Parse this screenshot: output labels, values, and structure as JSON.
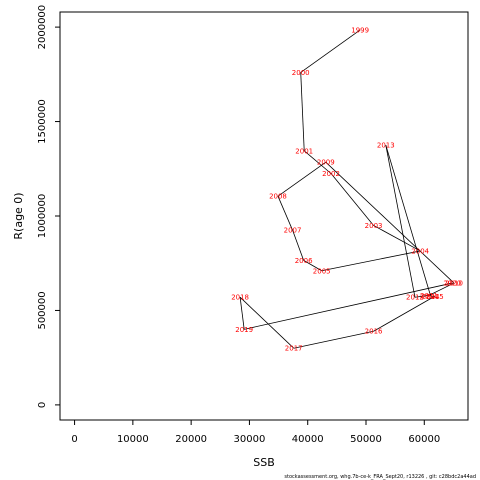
{
  "chart_data": {
    "type": "line",
    "title": "",
    "xlabel": "SSB",
    "ylabel": "R(age 0)",
    "xlim": [
      -2500,
      67500
    ],
    "ylim": [
      -80000,
      2080000
    ],
    "xticks": [
      0,
      10000,
      20000,
      30000,
      40000,
      50000,
      60000
    ],
    "yticks": [
      0,
      500000,
      1000000,
      1500000,
      2000000
    ],
    "grid": false,
    "line_color": "#000000",
    "label_color": "#ff0000",
    "points": [
      {
        "label": "1999",
        "x": 49000,
        "y": 1985000
      },
      {
        "label": "2000",
        "x": 38800,
        "y": 1760000
      },
      {
        "label": "2001",
        "x": 39400,
        "y": 1345000
      },
      {
        "label": "2002",
        "x": 44000,
        "y": 1225000
      },
      {
        "label": "2003",
        "x": 51300,
        "y": 950000
      },
      {
        "label": "2004",
        "x": 59300,
        "y": 815000
      },
      {
        "label": "2005",
        "x": 42400,
        "y": 710000
      },
      {
        "label": "2006",
        "x": 39300,
        "y": 765000
      },
      {
        "label": "2007",
        "x": 37400,
        "y": 925000
      },
      {
        "label": "2008",
        "x": 34900,
        "y": 1105000
      },
      {
        "label": "2009",
        "x": 43100,
        "y": 1285000
      },
      {
        "label": "2010",
        "x": 65100,
        "y": 645000
      },
      {
        "label": "2011",
        "x": 60800,
        "y": 580000
      },
      {
        "label": "2012",
        "x": 58400,
        "y": 570000
      },
      {
        "label": "2013",
        "x": 53400,
        "y": 1375000
      },
      {
        "label": "2014",
        "x": 61100,
        "y": 575000
      },
      {
        "label": "2015",
        "x": 61800,
        "y": 575000
      },
      {
        "label": "2016",
        "x": 51300,
        "y": 390000
      },
      {
        "label": "2017",
        "x": 37600,
        "y": 300000
      },
      {
        "label": "2018",
        "x": 28400,
        "y": 570000
      },
      {
        "label": "2019",
        "x": 29100,
        "y": 400000
      },
      {
        "label": "2020",
        "x": 64800,
        "y": 645000
      }
    ]
  },
  "footer": "stockassessment.org, whg.7b-ce-k_FRA_Sept20, r13226 , git: c28bdc2a44ad"
}
